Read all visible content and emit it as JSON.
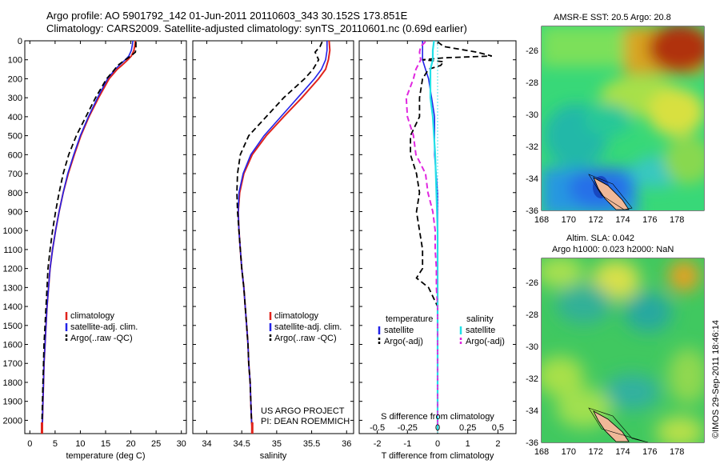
{
  "title": {
    "line1": "Argo profile: AO 5901792_142 01-Jun-2011 20110603_343 30.152S 173.851E",
    "line2": "Climatology: CARS2009. Satellite-adjusted climatology: synTS_20110601.nc (0.69d earlier)"
  },
  "colors": {
    "climatology": "#e0231c",
    "satellite": "#2323e8",
    "argo": "#000000",
    "sat_salinity": "#22e0e8",
    "argo_adj_sal": "#e028e0"
  },
  "chart_data": [
    {
      "type": "line",
      "name": "temperature-profile",
      "xlabel": "temperature (deg C)",
      "ylabel": "",
      "xlim": [
        -1,
        31
      ],
      "ylim": [
        2070,
        0
      ],
      "xticks": [
        0,
        5,
        10,
        15,
        20,
        25,
        30
      ],
      "yticks": [
        0,
        100,
        200,
        300,
        400,
        500,
        600,
        700,
        800,
        900,
        1000,
        1100,
        1200,
        1300,
        1400,
        1500,
        1600,
        1700,
        1800,
        1900,
        2000
      ],
      "legend": [
        "climatology",
        "satellite-adj. clim.",
        "Argo(..raw -QC)"
      ],
      "series": [
        {
          "name": "climatology",
          "depth": [
            0,
            20,
            50,
            80,
            100,
            130,
            150,
            200,
            300,
            400,
            500,
            600,
            700,
            800,
            900,
            1000,
            1100,
            1200,
            1300,
            1400,
            1500,
            1600,
            1700,
            1800,
            1900,
            2000,
            2050
          ],
          "values": [
            20.9,
            20.8,
            20.6,
            20.1,
            19.4,
            18.2,
            17.3,
            15.7,
            13.6,
            11.7,
            10.1,
            8.8,
            7.6,
            6.6,
            5.8,
            5.1,
            4.5,
            4.0,
            3.7,
            3.4,
            3.2,
            3.0,
            2.8,
            2.7,
            2.6,
            2.5,
            2.4
          ]
        },
        {
          "name": "satellite-adj. clim.",
          "depth": [
            0,
            20,
            50,
            80,
            100,
            130,
            150,
            200,
            300,
            400,
            500,
            600,
            700,
            800,
            900,
            1000,
            1100,
            1200,
            1300,
            1400,
            1500,
            1600,
            1700,
            1800,
            1900,
            2000,
            2050
          ],
          "values": [
            20.4,
            20.3,
            20.1,
            19.6,
            18.9,
            17.7,
            16.9,
            15.4,
            13.4,
            11.6,
            10.0,
            8.7,
            7.5,
            6.6,
            5.8,
            5.1,
            4.5,
            4.0,
            3.7,
            3.4,
            3.2,
            3.0,
            2.8,
            2.7,
            2.6,
            2.5,
            2.4
          ]
        },
        {
          "name": "Argo(..raw -QC)",
          "depth": [
            5,
            20,
            40,
            60,
            80,
            100,
            130,
            160,
            200,
            300,
            400,
            500,
            600,
            700,
            800,
            900,
            1000,
            1100,
            1200,
            1300,
            1400,
            1500,
            1600,
            1700,
            1800,
            1900,
            2000,
            2040
          ],
          "values": [
            21.0,
            21.0,
            21.0,
            20.9,
            20.0,
            18.9,
            17.4,
            16.5,
            15.2,
            13.0,
            11.1,
            9.2,
            7.7,
            6.6,
            5.8,
            5.1,
            4.5,
            4.0,
            3.6,
            3.4,
            3.2,
            3.0,
            2.8,
            2.7,
            2.6,
            2.5,
            2.4,
            2.4
          ]
        }
      ]
    },
    {
      "type": "line",
      "name": "salinity-profile",
      "xlabel": "salinity",
      "xlim": [
        33.8,
        36.1
      ],
      "ylim": [
        2070,
        0
      ],
      "xticks": [
        34,
        34.5,
        35,
        35.5,
        36
      ],
      "legend": [
        "climatology",
        "satellite-adj. clim.",
        "Argo(..raw -QC)"
      ],
      "series": [
        {
          "name": "climatology",
          "depth": [
            0,
            50,
            100,
            150,
            200,
            300,
            400,
            500,
            600,
            700,
            800,
            900,
            1000,
            1100,
            1200,
            1300,
            1400,
            1500,
            1600,
            1700,
            1800,
            1900,
            2000,
            2050
          ],
          "values": [
            35.75,
            35.76,
            35.74,
            35.7,
            35.6,
            35.36,
            35.1,
            34.85,
            34.65,
            34.53,
            34.47,
            34.45,
            34.46,
            34.48,
            34.5,
            34.53,
            34.55,
            34.57,
            34.59,
            34.6,
            34.62,
            34.63,
            34.64,
            34.65
          ]
        },
        {
          "name": "satellite-adj. clim.",
          "depth": [
            0,
            50,
            100,
            150,
            200,
            300,
            400,
            500,
            600,
            700,
            800,
            900,
            1000,
            1100,
            1200,
            1300,
            1400,
            1500,
            1600,
            1700,
            1800,
            1900,
            2000,
            2050
          ],
          "values": [
            35.72,
            35.72,
            35.7,
            35.64,
            35.54,
            35.3,
            35.06,
            34.82,
            34.63,
            34.52,
            34.46,
            34.45,
            34.46,
            34.48,
            34.5,
            34.53,
            34.55,
            34.57,
            34.59,
            34.6,
            34.62,
            34.63,
            34.64,
            34.65
          ]
        },
        {
          "name": "Argo(..raw -QC)",
          "depth": [
            5,
            30,
            60,
            100,
            150,
            200,
            300,
            400,
            500,
            600,
            700,
            800,
            900,
            1000,
            1100,
            1200,
            1300,
            1400,
            1500,
            1600,
            1700,
            1800,
            1900,
            2000,
            2040
          ],
          "values": [
            35.65,
            35.62,
            35.55,
            35.6,
            35.52,
            35.4,
            35.1,
            34.85,
            34.6,
            34.48,
            34.44,
            34.43,
            34.44,
            34.46,
            34.48,
            34.5,
            34.53,
            34.55,
            34.57,
            34.59,
            34.6,
            34.62,
            34.63,
            34.64,
            34.65
          ]
        }
      ]
    },
    {
      "type": "line",
      "name": "difference-profile",
      "xlabel": "T difference from climatology",
      "xlabel2": "S difference from climatology",
      "xlim": [
        -2.6,
        2.6
      ],
      "ylim": [
        2070,
        0
      ],
      "xticks": [
        -2,
        -1,
        0,
        1,
        2
      ],
      "xticks2_labels": [
        "-0.5",
        "-0.25",
        "0",
        "0.25",
        "0.5"
      ],
      "xticks2_pos": [
        -2,
        -1,
        0,
        1,
        2
      ],
      "legend": {
        "temperature_header": "temperature",
        "salinity_header": "salinity",
        "t_sat": "satellite",
        "t_argo": "Argo(-adj)",
        "s_sat": "satellite",
        "s_argo": "Argo(-adj)"
      },
      "series": [
        {
          "name": "T satellite",
          "depth": [
            0,
            50,
            100,
            150,
            200,
            300,
            400,
            500,
            600,
            800,
            1000,
            1200,
            1400,
            1600,
            2000,
            2050
          ],
          "values": [
            -0.5,
            -0.5,
            -0.5,
            -0.4,
            -0.3,
            -0.2,
            -0.1,
            -0.1,
            -0.1,
            0,
            0,
            0,
            0,
            0,
            0,
            0
          ]
        },
        {
          "name": "T Argo(-adj)",
          "depth": [
            5,
            30,
            60,
            80,
            90,
            100,
            110,
            130,
            150,
            200,
            300,
            400,
            500,
            600,
            700,
            800,
            900,
            1000,
            1100,
            1200,
            1250,
            1300,
            1400,
            1600,
            2000,
            2040
          ],
          "values": [
            0,
            0.2,
            1.3,
            1.8,
            0.2,
            -0.5,
            0.2,
            0.1,
            -0.3,
            -0.5,
            -0.6,
            -0.6,
            -0.9,
            -0.9,
            -0.7,
            -0.6,
            -0.7,
            -0.6,
            -0.5,
            -0.5,
            -0.7,
            -0.3,
            0,
            0,
            0,
            0
          ]
        },
        {
          "name": "S satellite",
          "depth": [
            0,
            50,
            100,
            150,
            200,
            300,
            400,
            500,
            600,
            800,
            1000,
            1200,
            1400,
            1600,
            2000,
            2050
          ],
          "values": [
            -0.12,
            -0.16,
            -0.16,
            -0.24,
            -0.24,
            -0.24,
            -0.16,
            -0.12,
            -0.08,
            -0.04,
            0,
            0,
            0,
            0,
            0,
            0
          ]
        },
        {
          "name": "S Argo(-adj)",
          "depth": [
            5,
            30,
            60,
            100,
            150,
            200,
            300,
            400,
            500,
            600,
            700,
            800,
            900,
            1000,
            1100,
            1200,
            1300,
            1400,
            1600,
            2000,
            2040
          ],
          "values": [
            -0.4,
            -0.56,
            -0.6,
            -0.56,
            -0.72,
            -0.8,
            -1.04,
            -1.0,
            -0.8,
            -0.72,
            -0.4,
            -0.32,
            -0.16,
            -0.08,
            -0.08,
            -0.04,
            -0.04,
            0,
            0,
            0,
            0
          ]
        }
      ]
    },
    {
      "type": "heatmap",
      "name": "sst-map",
      "title": "AMSR-E SST: 20.5 Argo: 20.8",
      "xlim": [
        168,
        180
      ],
      "ylim": [
        -36,
        -24.5
      ],
      "xticks": [
        168,
        170,
        172,
        174,
        176,
        178
      ],
      "yticks": [
        -26,
        -28,
        -30,
        -32,
        -34,
        -36
      ],
      "marker": {
        "lon": 173.851,
        "lat": -30.152
      }
    },
    {
      "type": "heatmap",
      "name": "sla-map",
      "title_line1": "Altim. SLA: 0.042",
      "title_line2": "Argo h1000: 0.023 h2000: NaN",
      "xlim": [
        168,
        180
      ],
      "ylim": [
        -36,
        -24.5
      ],
      "xticks": [
        168,
        170,
        172,
        174,
        176,
        178
      ],
      "yticks": [
        -26,
        -28,
        -30,
        -32,
        -34,
        -36
      ],
      "marker": {
        "lon": 173.851,
        "lat": -30.152
      }
    }
  ],
  "annotations": {
    "project_line1": "US ARGO PROJECT",
    "project_line2": "PI: DEAN ROEMMICH",
    "credit": "©IMOS 29-Sep-2011 18:46:14"
  }
}
